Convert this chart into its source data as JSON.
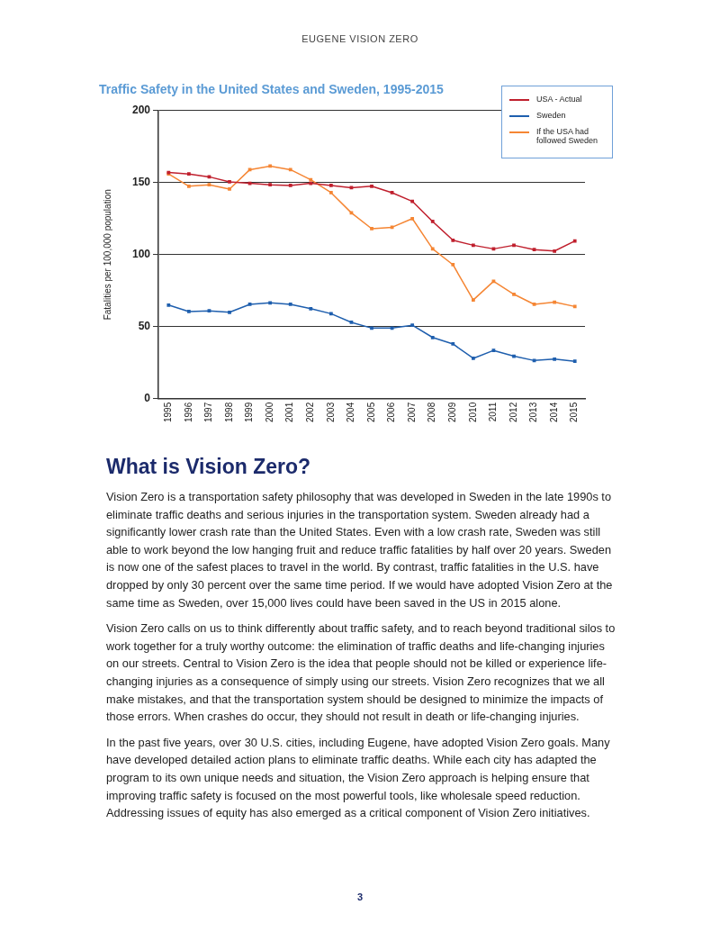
{
  "chart_data": {
    "type": "line",
    "title": "Traffic Safety in the United States and Sweden, 1995-2015",
    "ylabel": "Fatalities per 100,000 population",
    "categories": [
      "1995",
      "1996",
      "1997",
      "1998",
      "1999",
      "2000",
      "2001",
      "2002",
      "2003",
      "2004",
      "2005",
      "2006",
      "2007",
      "2008",
      "2009",
      "2010",
      "2011",
      "2012",
      "2013",
      "2014",
      "2015"
    ],
    "series": [
      {
        "name": "USA - Actual",
        "color": "#c0202e",
        "values": [
          157,
          156,
          154,
          150.5,
          149.5,
          148.5,
          148,
          149.5,
          148,
          146.5,
          147.5,
          143,
          137,
          123,
          110,
          106.5,
          104,
          106.5,
          103.5,
          102.5,
          109.5
        ]
      },
      {
        "name": "Sweden",
        "color": "#1f5fae",
        "values": [
          65,
          60.5,
          61,
          60,
          65.5,
          66.5,
          65.5,
          62.5,
          59,
          53,
          49,
          49,
          51,
          42.5,
          38,
          28,
          33.5,
          29.5,
          26.5,
          27.5,
          26
        ]
      },
      {
        "name": "If the USA had followed Sweden",
        "color": "#f58634",
        "values": [
          156,
          147.5,
          148.5,
          145.5,
          159,
          161.5,
          159,
          152,
          143,
          129,
          118,
          119,
          125,
          104,
          93,
          68.5,
          81.5,
          72.5,
          65.5,
          67,
          64
        ]
      }
    ],
    "ylim": [
      0,
      200
    ],
    "yticks": [
      0,
      50,
      100,
      150,
      200
    ],
    "grid": "y",
    "legend": "top right",
    "marker": "square",
    "line_style": "solid",
    "annotations": [
      "EUGENE VISION ZERO",
      "What is Vision Zero?",
      "Vision Zero is a transportation safety philosophy that was developed in Sweden in the late 1990s to eliminate traffic deaths and serious injuries in the transportation system. Sweden already had a significantly lower crash rate than the United States. Even with a low crash rate, Sweden was still able to work beyond the low hanging fruit and reduce traffic fatalities by half over 20 years. Sweden is now one of the safest places to travel in the world. By contrast, traffic fatalities in the U.S. have dropped by only 30 percent over the same time period. If we would have adopted Vision Zero at the same time as Sweden, over 15,000 lives could have been saved in the US in 2015 alone.",
      "Vision Zero calls on us to think differently about traffic safety, and to reach beyond traditional silos to work together for a truly worthy outcome: the elimination of traffic deaths and life-changing injuries on our streets. Central to Vision Zero is the idea that people should not be killed or experience life-changing injuries as a consequence of simply using our streets. Vision Zero recognizes that we all make mistakes, and that the transportation system should be designed to minimize the impacts of those errors. When crashes do occur, they should not result in death or life-changing injuries.",
      "In the past five years, over 30 U.S. cities, including Eugene, have adopted Vision Zero goals. Many have developed detailed action plans to eliminate traffic deaths. While each city has adapted the program to its own unique needs and situation, the Vision Zero approach is helping ensure that improving traffic safety is focused on the most powerful tools, like wholesale speed reduction. Addressing issues of equity has also emerged as a critical component of Vision Zero initiatives.",
      "3"
    ]
  }
}
